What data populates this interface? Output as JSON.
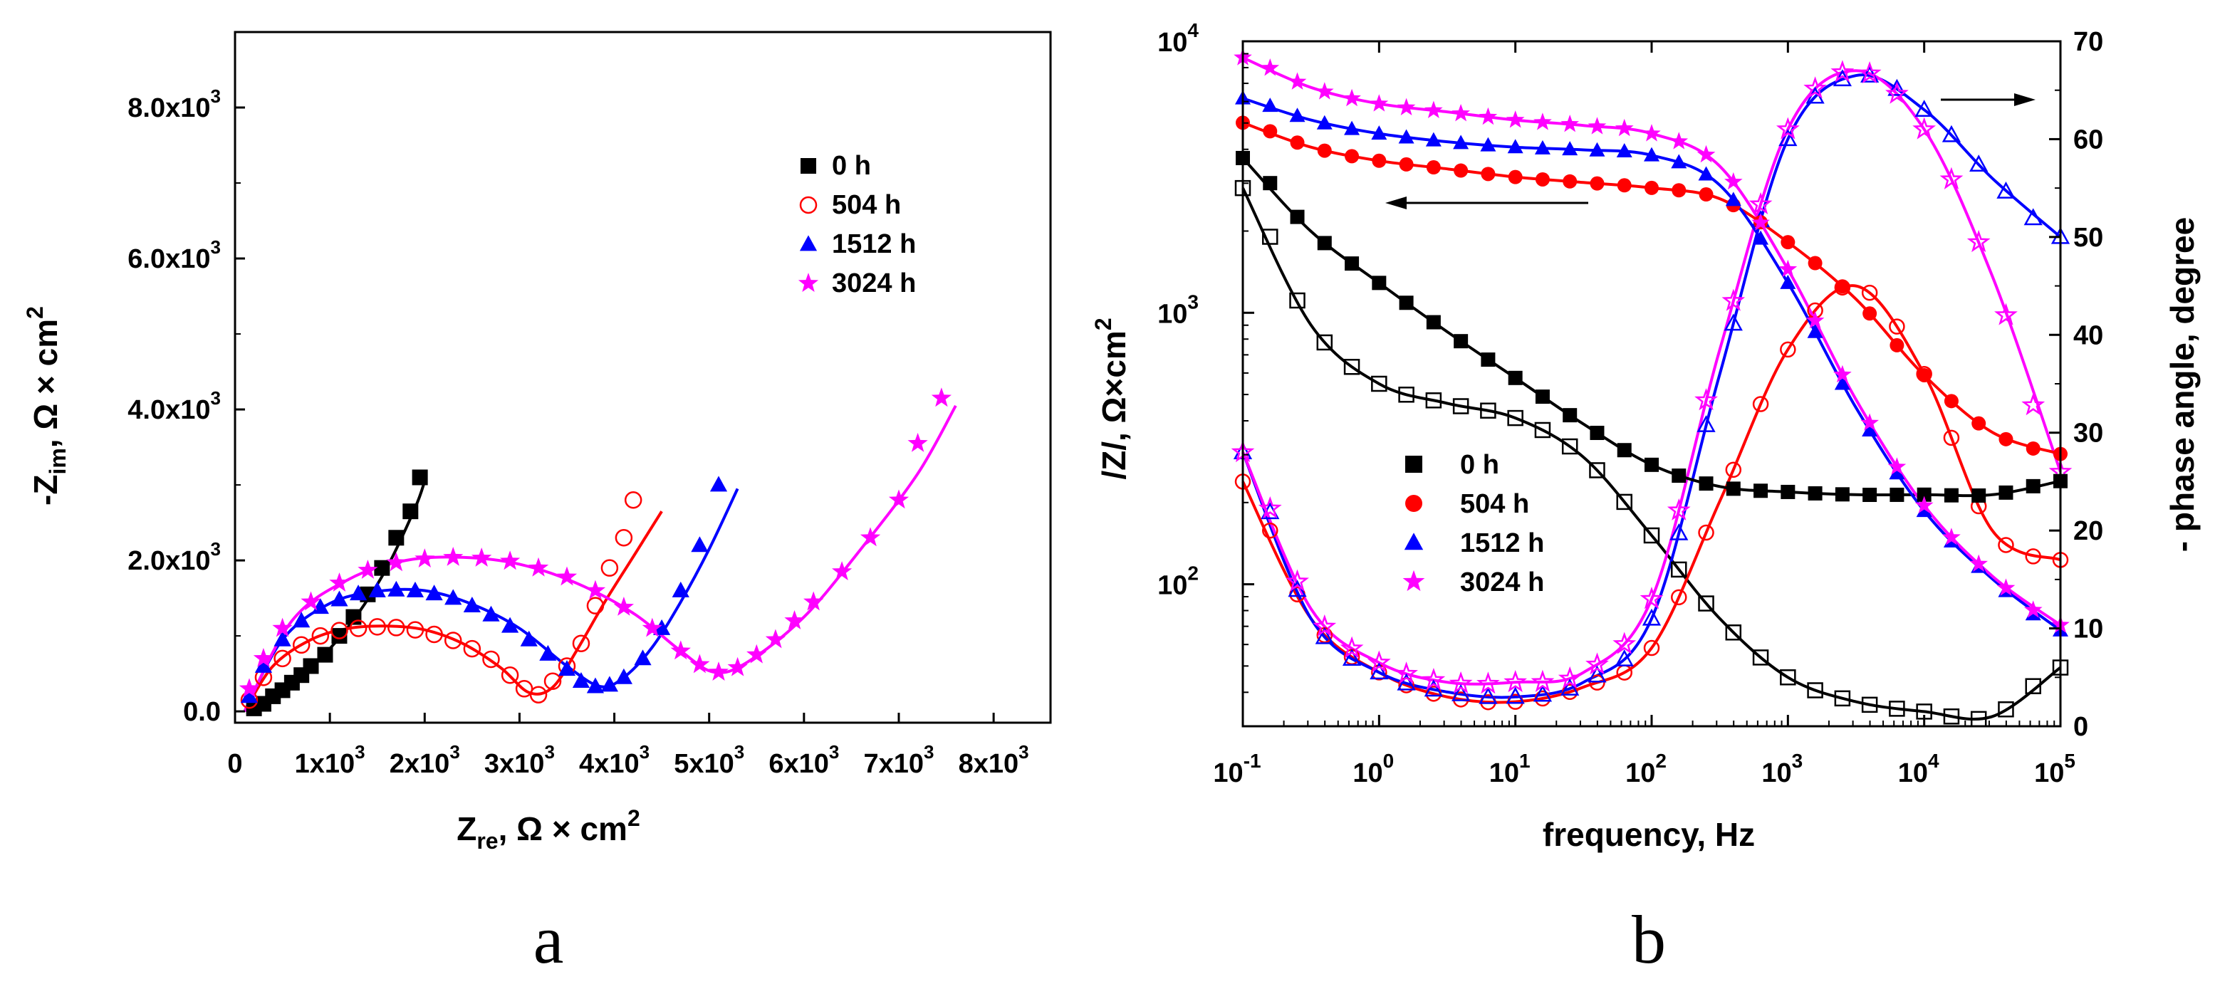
{
  "panel_labels": {
    "a": "a",
    "b": "b"
  },
  "colors": {
    "0 h": "#000000",
    "504 h": "#ff0000",
    "1512 h": "#0000ff",
    "3024 h": "#ff00ff"
  },
  "chart_data": [
    {
      "type": "scatter",
      "title": "",
      "panel": "a",
      "xlabel": "Z_re, Ω × cm^2",
      "ylabel": "-Z_im, Ω × cm^2",
      "xlim": [
        0,
        8600
      ],
      "ylim": [
        -150,
        9000
      ],
      "x_ticks": [
        0,
        1000,
        2000,
        3000,
        4000,
        5000,
        6000,
        7000,
        8000
      ],
      "x_tick_labels": [
        "0",
        "1x10^3",
        "2x10^3",
        "3x10^3",
        "4x10^3",
        "5x10^3",
        "6x10^3",
        "7x10^3",
        "8x10^3"
      ],
      "y_ticks": [
        0,
        2000,
        4000,
        6000,
        8000
      ],
      "y_tick_labels": [
        "0.0",
        "2.0x10^3",
        "4.0x10^3",
        "6.0x10^3",
        "8.0x10^3"
      ],
      "legend": [
        "0 h",
        "504 h",
        "1512 h",
        "3024 h"
      ],
      "legend_position": "top-right",
      "series": [
        {
          "name": "0 h",
          "marker": "square-filled",
          "color": "#000000",
          "x": [
            200,
            300,
            400,
            500,
            600,
            700,
            800,
            950,
            1100,
            1250,
            1400,
            1550,
            1700,
            1850,
            1950
          ],
          "y": [
            40,
            100,
            200,
            280,
            380,
            480,
            600,
            750,
            1000,
            1250,
            1550,
            1900,
            2300,
            2650,
            3100
          ],
          "fit_x": [
            150,
            400,
            700,
            1000,
            1300,
            1600,
            1900,
            2000
          ],
          "fit_y": [
            0,
            190,
            460,
            830,
            1300,
            1900,
            2700,
            3050
          ]
        },
        {
          "name": "504 h",
          "marker": "circle-open",
          "color": "#ff0000",
          "x": [
            150,
            300,
            500,
            700,
            900,
            1100,
            1300,
            1500,
            1700,
            1900,
            2100,
            2300,
            2500,
            2700,
            2900,
            3050,
            3200,
            3350,
            3500,
            3650,
            3800,
            3950,
            4100,
            4200
          ],
          "y": [
            150,
            450,
            700,
            880,
            1000,
            1070,
            1100,
            1120,
            1110,
            1080,
            1020,
            940,
            830,
            690,
            480,
            300,
            220,
            400,
            600,
            900,
            1400,
            1900,
            2300,
            2800
          ],
          "fit_x": [
            100,
            400,
            800,
            1200,
            1600,
            2000,
            2400,
            2800,
            3100,
            3350,
            3600,
            3900,
            4200,
            4500
          ],
          "fit_y": [
            0,
            600,
            950,
            1100,
            1130,
            1080,
            900,
            580,
            250,
            320,
            800,
            1450,
            2050,
            2650
          ]
        },
        {
          "name": "1512 h",
          "marker": "triangle-filled",
          "color": "#0000ff",
          "x": [
            150,
            300,
            500,
            700,
            900,
            1100,
            1300,
            1500,
            1700,
            1900,
            2100,
            2300,
            2500,
            2700,
            2900,
            3100,
            3300,
            3500,
            3650,
            3800,
            3950,
            4100,
            4300,
            4500,
            4700,
            4900,
            5100
          ],
          "y": [
            200,
            600,
            950,
            1200,
            1380,
            1480,
            1560,
            1600,
            1610,
            1600,
            1560,
            1500,
            1400,
            1280,
            1130,
            950,
            760,
            560,
            400,
            330,
            350,
            450,
            700,
            1100,
            1600,
            2200,
            3000
          ],
          "fit_x": [
            100,
            500,
            1000,
            1500,
            2000,
            2500,
            3000,
            3500,
            3850,
            4100,
            4400,
            4700,
            5000,
            5300
          ],
          "fit_y": [
            0,
            950,
            1430,
            1590,
            1600,
            1420,
            1100,
            600,
            330,
            450,
            850,
            1450,
            2150,
            2950
          ]
        },
        {
          "name": "3024 h",
          "marker": "star-filled",
          "color": "#ff00ff",
          "x": [
            150,
            300,
            500,
            800,
            1100,
            1400,
            1700,
            2000,
            2300,
            2600,
            2900,
            3200,
            3500,
            3800,
            4100,
            4400,
            4700,
            4900,
            5100,
            5300,
            5500,
            5700,
            5900,
            6100,
            6400,
            6700,
            7000,
            7200,
            7450
          ],
          "y": [
            300,
            700,
            1100,
            1450,
            1700,
            1870,
            1970,
            2020,
            2040,
            2030,
            1990,
            1900,
            1780,
            1600,
            1380,
            1100,
            800,
            620,
            520,
            580,
            750,
            950,
            1200,
            1450,
            1850,
            2300,
            2800,
            3550,
            4150
          ],
          "fit_x": [
            100,
            600,
            1200,
            1800,
            2400,
            3000,
            3600,
            4200,
            4700,
            5050,
            5400,
            6000,
            6600,
            7200,
            7600
          ],
          "fit_y": [
            0,
            1200,
            1750,
            2000,
            2040,
            1950,
            1700,
            1300,
            800,
            520,
            650,
            1250,
            2150,
            3150,
            4050
          ]
        }
      ]
    },
    {
      "type": "line",
      "title": "",
      "panel": "b",
      "xlabel": "frequency, Hz",
      "ylabel": "/Z/, Ω×cm^2",
      "y2label": "- phase angle, degree",
      "x_scale": "log",
      "xlim_log10": [
        -1,
        5
      ],
      "y_scale": "log",
      "ylim_log10": [
        1.477,
        4
      ],
      "y2lim": [
        0,
        70
      ],
      "x_tick_exponents": [
        -1,
        0,
        1,
        2,
        3,
        4,
        5
      ],
      "x_tick_labels": [
        "10^-1",
        "10^0",
        "10^1",
        "10^2",
        "10^3",
        "10^4",
        "10^5"
      ],
      "y_tick_exponents": [
        2,
        3,
        4
      ],
      "y_tick_labels": [
        "10^2",
        "10^3",
        "10^4"
      ],
      "y2_ticks": [
        0,
        10,
        20,
        30,
        40,
        50,
        60,
        70
      ],
      "y2_tick_labels": [
        "0",
        "10",
        "20",
        "30",
        "40",
        "50",
        "60",
        "70"
      ],
      "legend": [
        "0 h",
        "504 h",
        "1512 h",
        "3024 h"
      ],
      "legend_position": "bottom-left",
      "annotations": [
        {
          "text": "arrow pointing left: filled symbols refer to |Z| (left axis)"
        },
        {
          "text": "arrow pointing right: open symbols refer to phase angle (right axis)"
        }
      ],
      "log10_freq": [
        -1,
        -0.5,
        0,
        0.5,
        1,
        1.5,
        2,
        2.5,
        3,
        3.5,
        4,
        4.5,
        5
      ],
      "series": [
        {
          "name": "0 h",
          "color": "#000000",
          "modulus_log10": [
            3.57,
            3.3,
            3.11,
            2.93,
            2.76,
            2.59,
            2.44,
            2.36,
            2.34,
            2.33,
            2.33,
            2.33,
            2.38
          ],
          "phase_deg": [
            55,
            41,
            35,
            33,
            31.5,
            27.5,
            19.5,
            11,
            5,
            2.5,
            1.5,
            1,
            6
          ]
        },
        {
          "name": "504 h",
          "color": "#ff0000",
          "modulus_log10": [
            3.7,
            3.61,
            3.56,
            3.53,
            3.5,
            3.48,
            3.46,
            3.42,
            3.26,
            3.05,
            2.77,
            2.56,
            2.48
          ],
          "phase_deg": [
            25,
            11,
            5.5,
            3,
            2.5,
            4,
            8,
            23,
            38.5,
            45,
            36,
            20,
            17
          ]
        },
        {
          "name": "1512 h",
          "color": "#0000ff",
          "modulus_log10": [
            3.79,
            3.71,
            3.66,
            3.63,
            3.61,
            3.6,
            3.58,
            3.47,
            3.11,
            2.65,
            2.27,
            2.02,
            1.83
          ],
          "phase_deg": [
            28,
            11,
            5.5,
            3.5,
            3,
            4.5,
            11,
            36,
            60,
            66.5,
            63,
            56,
            50
          ]
        },
        {
          "name": "3024 h",
          "color": "#ff00ff",
          "modulus_log10": [
            3.94,
            3.83,
            3.77,
            3.74,
            3.71,
            3.69,
            3.66,
            3.54,
            3.16,
            2.68,
            2.29,
            2.03,
            1.85
          ],
          "phase_deg": [
            28,
            12,
            6.5,
            4.5,
            4.5,
            5.5,
            13,
            38.5,
            61,
            67,
            61,
            46,
            26
          ]
        }
      ]
    }
  ]
}
